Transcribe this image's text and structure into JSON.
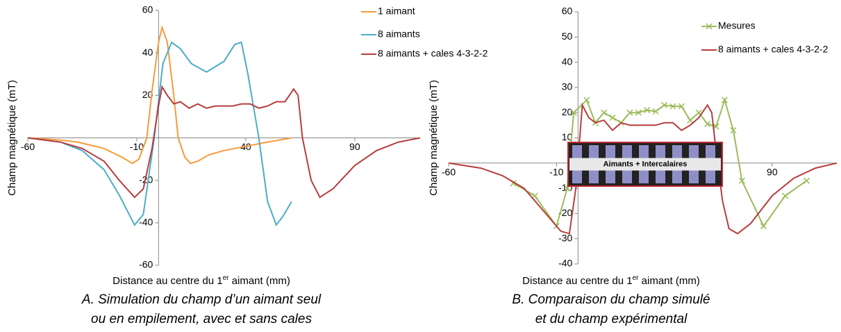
{
  "chart_data": [
    {
      "type": "line",
      "x_label": {
        "main": "Distance au centre du 1",
        "sup": "er",
        "rest": " aimant (mm)"
      },
      "y_label": "Champ magnétique (mT)",
      "caption": [
        "A. Simulation du champ d’un aimant seul",
        "ou en empilement, avec et sans cales"
      ],
      "xlim": [
        -60,
        120
      ],
      "xticks": [
        -60,
        -10,
        40,
        90
      ],
      "ylim": [
        -60,
        60
      ],
      "yticks": [
        -60,
        -40,
        -20,
        20,
        40,
        60
      ],
      "grid": false,
      "legend": "upper right",
      "series": [
        {
          "name": "1 aimant",
          "color": "#f79a3a",
          "x": [
            -60,
            -45,
            -37,
            -25,
            -17,
            -12,
            -9,
            -5.4,
            -3,
            0,
            1.6,
            4,
            7,
            9,
            12,
            14.6,
            18,
            23,
            30,
            40,
            50,
            61
          ],
          "values": [
            0,
            -1,
            -2,
            -5,
            -9,
            -12,
            -10,
            0,
            22,
            45,
            52,
            45,
            20,
            0,
            -9,
            -12,
            -11,
            -8,
            -6,
            -4,
            -2,
            0
          ]
        },
        {
          "name": "8 aimants",
          "color": "#4bacc6",
          "x": [
            -60,
            -45,
            -35,
            -25,
            -18,
            -11,
            -7,
            -2,
            2,
            6,
            10,
            15,
            22,
            30,
            35,
            38,
            41,
            46,
            50,
            54,
            57,
            61
          ],
          "values": [
            0,
            -2,
            -6,
            -15,
            -27,
            -41,
            -36,
            0,
            35,
            45,
            42,
            35,
            31,
            36,
            44,
            45,
            30,
            0,
            -30,
            -41,
            -37,
            -30
          ]
        },
        {
          "name": "8 aimants + cales 4-3-2-2",
          "color": "#b83c3c",
          "x": [
            -60,
            -45,
            -35,
            -25,
            -18,
            -11,
            -7,
            -3,
            0,
            1.6,
            4,
            7,
            10,
            14,
            18,
            22,
            26,
            30,
            34,
            38,
            42,
            46,
            50,
            54,
            58,
            62,
            64,
            66,
            70,
            74,
            80,
            90,
            100,
            110,
            120
          ],
          "values": [
            0,
            -2,
            -5,
            -11,
            -20,
            -28,
            -24,
            -5,
            15,
            24,
            20,
            16,
            17,
            14,
            16,
            14,
            15,
            15,
            15,
            16,
            16,
            14,
            15,
            17,
            17,
            23,
            20,
            0,
            -20,
            -28,
            -24,
            -13,
            -6,
            -2,
            0
          ]
        }
      ]
    },
    {
      "type": "line",
      "x_label": {
        "main": "Distance au centre du 1",
        "sup": "er",
        "rest": " aimant (mm)"
      },
      "y_label": "Champ magnétique (mT)",
      "caption": [
        "B. Comparaison du champ simulé",
        "et du champ expérimental"
      ],
      "inset_label": "Aimants + Intercalaires",
      "xlim": [
        -60,
        120
      ],
      "xticks": [
        -60,
        -10,
        40,
        90
      ],
      "ylim": [
        -40,
        60
      ],
      "yticks": [
        -40,
        -30,
        -20,
        -10,
        0,
        10,
        20,
        30,
        40,
        50,
        60
      ],
      "grid": false,
      "legend": "upper right",
      "series": [
        {
          "name": "Mesures",
          "color": "#9bbb59",
          "marker": "x",
          "x": [
            -30,
            -20,
            -10,
            -5,
            -2,
            4,
            8,
            12,
            16,
            20,
            24,
            28,
            32,
            36,
            40,
            44,
            48,
            52,
            56,
            60,
            64,
            68,
            72,
            76,
            86,
            96,
            106
          ],
          "values": [
            -8,
            -13,
            -25,
            -10,
            20,
            25,
            16,
            20,
            18,
            16,
            20,
            20,
            21,
            20.5,
            23,
            22.5,
            22.5,
            17,
            20,
            15.5,
            14.5,
            25,
            13,
            -7,
            -25,
            -13,
            -7
          ]
        },
        {
          "name": "8 aimants + cales 4-3-2-2",
          "color": "#b83c3c",
          "x": [
            -60,
            -45,
            -35,
            -25,
            -15,
            -8,
            -4,
            -1,
            2,
            5,
            8,
            12,
            16,
            20,
            24,
            28,
            32,
            36,
            40,
            44,
            48,
            52,
            56,
            60,
            62,
            64,
            67,
            70,
            74,
            80,
            90,
            100,
            110,
            120
          ],
          "values": [
            0,
            -2,
            -5,
            -10,
            -20,
            -27,
            -28,
            -10,
            23,
            18,
            16,
            17,
            13,
            16,
            15,
            15,
            15,
            15,
            16,
            16,
            13,
            15,
            18,
            23,
            20,
            5,
            -15,
            -26,
            -28,
            -24,
            -13,
            -6,
            -2,
            0
          ]
        }
      ]
    }
  ]
}
